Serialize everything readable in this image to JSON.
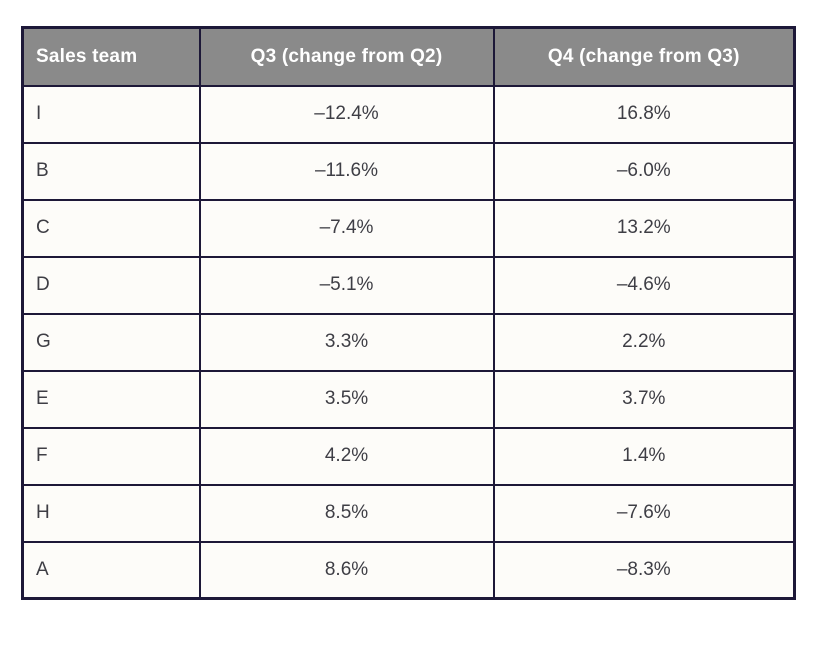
{
  "chart_data": {
    "type": "table",
    "title": "",
    "columns": [
      "Sales team",
      "Q3 (change from Q2)",
      "Q4 (change from Q3)"
    ],
    "rows": [
      [
        "I",
        "–12.4%",
        "16.8%"
      ],
      [
        "B",
        "–11.6%",
        "–6.0%"
      ],
      [
        "C",
        "–7.4%",
        "13.2%"
      ],
      [
        "D",
        "–5.1%",
        "–4.6%"
      ],
      [
        "G",
        "3.3%",
        "2.2%"
      ],
      [
        "E",
        "3.5%",
        "3.7%"
      ],
      [
        "F",
        "4.2%",
        "1.4%"
      ],
      [
        "H",
        "8.5%",
        "–7.6%"
      ],
      [
        "A",
        "8.6%",
        "–8.3%"
      ]
    ],
    "series": [
      {
        "name": "Q3 (change from Q2)",
        "values": [
          -12.4,
          -11.6,
          -7.4,
          -5.1,
          3.3,
          3.5,
          4.2,
          8.5,
          8.6
        ]
      },
      {
        "name": "Q4 (change from Q3)",
        "values": [
          16.8,
          -6.0,
          13.2,
          -4.6,
          2.2,
          3.7,
          1.4,
          -7.6,
          -8.3
        ]
      }
    ],
    "categories": [
      "I",
      "B",
      "C",
      "D",
      "G",
      "E",
      "F",
      "H",
      "A"
    ],
    "unit": "%"
  },
  "colors": {
    "header_bg": "#8a8a8a",
    "header_text": "#ffffff",
    "border": "#1d1838",
    "cell_bg": "#fdfcf9",
    "cell_text": "#3e3e45",
    "page_bg": "#ffffff"
  }
}
